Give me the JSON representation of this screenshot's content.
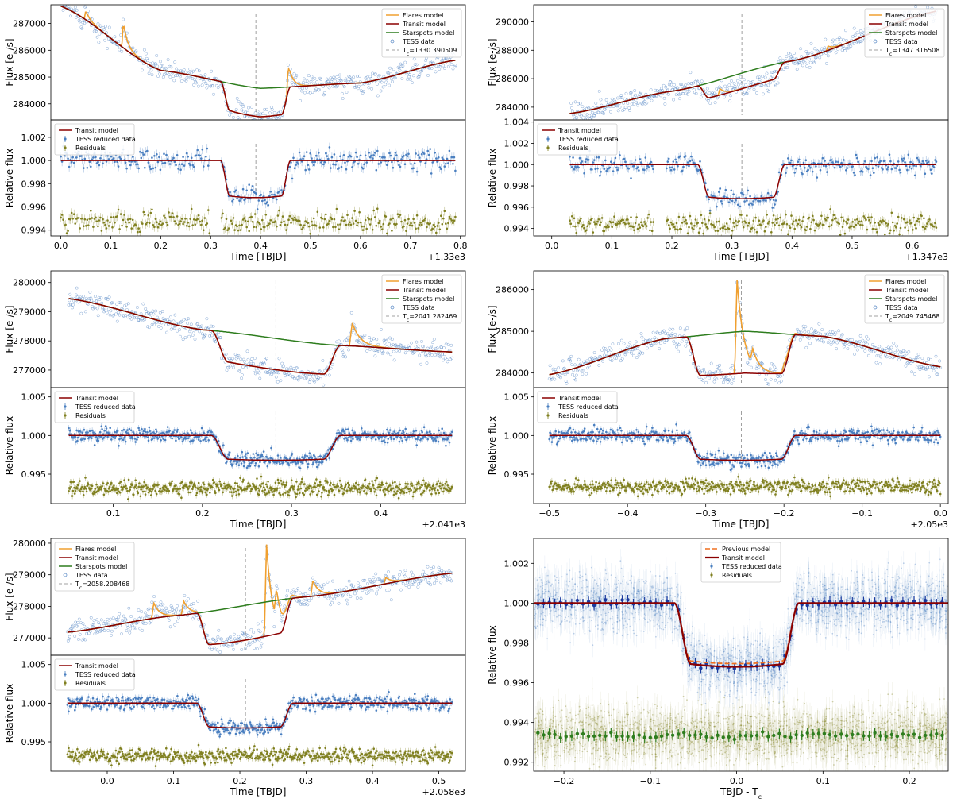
{
  "figure_title": "",
  "colors": {
    "flares": "#f0a030",
    "transit": "#8b0000",
    "starspots": "#2e7d1e",
    "tess": "#4a7fc0",
    "residuals": "#808020",
    "tc_line": "#a0a0a0",
    "previous": "#f07020",
    "transit_final": "#1a237e",
    "binned_blue": "#1a3a9e",
    "binned_green": "#2e7d1e"
  },
  "chart_data": [
    {
      "id": "p1",
      "type": "line",
      "ylabel": "Flux [e-/s]",
      "xlim": [
        -0.02,
        0.81
      ],
      "ylim": [
        283400,
        287700
      ],
      "yticks": [
        284000,
        285000,
        286000,
        287000
      ],
      "legend": {
        "position": "top-right",
        "entries": [
          "Flares model",
          "Transit model",
          "Starspots model",
          "TESS data",
          "T_c=1330.390509"
        ]
      },
      "tc": 0.3905,
      "transit": {
        "t1": 0.32,
        "t4": 0.46,
        "depth": 0.0034
      },
      "starspots": {
        "t": [
          0.0,
          0.2,
          0.4,
          0.6,
          0.79
        ],
        "flux": [
          287650,
          285250,
          284580,
          284780,
          285630
        ]
      },
      "flares": [
        {
          "t": 0.05,
          "amp": 350
        },
        {
          "t": 0.125,
          "amp": 950
        },
        {
          "t": 0.455,
          "amp": 900
        }
      ]
    },
    {
      "id": "p2",
      "type": "line",
      "xlabel": "Time [TBJD]",
      "ylabel": "Relative flux",
      "offset_label": "+1.33e3",
      "xlim": [
        -0.02,
        0.81
      ],
      "ylim": [
        0.9935,
        1.0035
      ],
      "xticks": [
        0.0,
        0.1,
        0.2,
        0.3,
        0.4,
        0.5,
        0.6,
        0.7,
        0.8
      ],
      "xtick_labels": [
        "0.0",
        "0.1",
        "0.2",
        "0.3",
        "0.4",
        "0.5",
        "0.6",
        "0.7",
        "0.8"
      ],
      "yticks": [
        0.994,
        0.996,
        0.998,
        1.0,
        1.002
      ],
      "ytick_labels": [
        "0.994",
        "0.996",
        "0.998",
        "1.000",
        "1.002"
      ],
      "legend": {
        "position": "top-left",
        "entries": [
          "Transit model",
          "TESS reduced data",
          "Residuals"
        ]
      },
      "tc": 0.3905,
      "range": [
        0.0,
        0.79
      ],
      "transit": {
        "t1": 0.32,
        "t4": 0.46,
        "depth": 0.0032
      },
      "residual_level": 0.9947
    },
    {
      "id": "p3",
      "type": "line",
      "ylabel": "Flux [e-/s]",
      "xlim": [
        -0.03,
        0.66
      ],
      "ylim": [
        283100,
        291200
      ],
      "yticks": [
        284000,
        286000,
        288000,
        290000
      ],
      "legend": {
        "position": "top-right",
        "entries": [
          "Flares model",
          "Transit model",
          "Starspots model",
          "TESS data",
          "T_c=1347.316508"
        ]
      },
      "tc": 0.3165,
      "transit": {
        "t1": 0.243,
        "t4": 0.388,
        "depth": 0.0035
      },
      "starspots": {
        "t": [
          0.03,
          0.2,
          0.4,
          0.64
        ],
        "flux": [
          283550,
          285120,
          287250,
          290750
        ]
      },
      "flares": [
        {
          "t": 0.28,
          "amp": 450
        },
        {
          "t": 0.46,
          "amp": 300
        }
      ]
    },
    {
      "id": "p4",
      "type": "line",
      "xlabel": "Time [TBJD]",
      "ylabel": "Relative flux",
      "offset_label": "+1.347e3",
      "xlim": [
        -0.03,
        0.66
      ],
      "ylim": [
        0.9933,
        1.0042
      ],
      "xticks": [
        0.0,
        0.1,
        0.2,
        0.3,
        0.4,
        0.5,
        0.6
      ],
      "xtick_labels": [
        "0.0",
        "0.1",
        "0.2",
        "0.3",
        "0.4",
        "0.5",
        "0.6"
      ],
      "yticks": [
        0.994,
        0.996,
        0.998,
        1.0,
        1.002,
        1.004
      ],
      "ytick_labels": [
        "0.994",
        "0.996",
        "0.998",
        "1.000",
        "1.002",
        "1.004"
      ],
      "legend": {
        "position": "top-left",
        "entries": [
          "Transit model",
          "TESS reduced data",
          "Residuals"
        ]
      },
      "tc": 0.3165,
      "range": [
        0.03,
        0.64
      ],
      "transit": {
        "t1": 0.243,
        "t4": 0.388,
        "depth": 0.0032
      },
      "residual_level": 0.9944
    },
    {
      "id": "p5",
      "type": "line",
      "ylabel": "Flux [e-/s]",
      "xlim": [
        0.03,
        0.495
      ],
      "ylim": [
        276400,
        280400
      ],
      "yticks": [
        277000,
        278000,
        279000,
        280000
      ],
      "legend": {
        "position": "top-right",
        "entries": [
          "Flares model",
          "Transit model",
          "Starspots model",
          "TESS data",
          "T_c=2041.282469"
        ]
      },
      "tc": 0.2825,
      "transit": {
        "t1": 0.21,
        "t4": 0.355,
        "depth": 0.0035
      },
      "starspots": {
        "t": [
          0.05,
          0.2,
          0.35,
          0.48
        ],
        "flux": [
          279450,
          278380,
          277850,
          277620
        ]
      },
      "flares": [
        {
          "t": 0.368,
          "amp": 800
        }
      ]
    },
    {
      "id": "p6",
      "type": "line",
      "xlabel": "Time [TBJD]",
      "ylabel": "Relative flux",
      "offset_label": "+2.041e3",
      "xlim": [
        0.03,
        0.495
      ],
      "ylim": [
        0.9912,
        1.0062
      ],
      "xticks": [
        0.1,
        0.2,
        0.3,
        0.4
      ],
      "xtick_labels": [
        "0.1",
        "0.2",
        "0.3",
        "0.4"
      ],
      "yticks": [
        0.995,
        1.0,
        1.005
      ],
      "ytick_labels": [
        "0.995",
        "1.000",
        "1.005"
      ],
      "legend": {
        "position": "top-left",
        "entries": [
          "Transit model",
          "TESS reduced data",
          "Residuals"
        ]
      },
      "tc": 0.2825,
      "range": [
        0.05,
        0.48
      ],
      "transit": {
        "t1": 0.21,
        "t4": 0.355,
        "depth": 0.0032
      },
      "residual_level": 0.9932
    },
    {
      "id": "p7",
      "type": "line",
      "ylabel": "Flux [e-/s]",
      "xlim": [
        -0.52,
        0.01
      ],
      "ylim": [
        283650,
        286450
      ],
      "yticks": [
        284000,
        285000,
        286000
      ],
      "legend": {
        "position": "top-right",
        "entries": [
          "Flares model",
          "Transit model",
          "Starspots model",
          "TESS data",
          "T_c=2049.745468"
        ]
      },
      "tc": -0.2545,
      "transit": {
        "t1": -0.325,
        "t4": -0.185,
        "depth": 0.0032
      },
      "starspots": {
        "t": [
          -0.5,
          -0.35,
          -0.25,
          -0.15,
          0.0
        ],
        "flux": [
          283960,
          284830,
          285000,
          284880,
          284150
        ]
      },
      "flares": [
        {
          "t": -0.26,
          "amp": 2250
        },
        {
          "t": -0.24,
          "amp": 350
        },
        {
          "t": -0.2,
          "amp": 150
        }
      ]
    },
    {
      "id": "p8",
      "type": "line",
      "xlabel": "Time [TBJD]",
      "ylabel": "Relative flux",
      "offset_label": "+2.05e3",
      "xlim": [
        -0.52,
        0.01
      ],
      "ylim": [
        0.9912,
        1.0062
      ],
      "xticks": [
        -0.5,
        -0.4,
        -0.3,
        -0.2,
        -0.1,
        0.0
      ],
      "xtick_labels": [
        "−0.5",
        "−0.4",
        "−0.3",
        "−0.2",
        "−0.1",
        "0.0"
      ],
      "yticks": [
        0.995,
        1.0,
        1.005
      ],
      "ytick_labels": [
        "0.995",
        "1.000",
        "1.005"
      ],
      "legend": {
        "position": "top-left",
        "entries": [
          "Transit model",
          "TESS reduced data",
          "Residuals"
        ]
      },
      "tc": -0.2545,
      "range": [
        -0.5,
        0.0
      ],
      "transit": {
        "t1": -0.325,
        "t4": -0.185,
        "depth": 0.0032
      },
      "residual_level": 0.9934
    },
    {
      "id": "p9",
      "type": "line",
      "ylabel": "Flux [e-/s]",
      "xlim": [
        -0.085,
        0.54
      ],
      "ylim": [
        276450,
        280150
      ],
      "yticks": [
        277000,
        278000,
        279000,
        280000
      ],
      "legend": {
        "position": "top-left",
        "entries": [
          "Flares model",
          "Transit model",
          "Starspots model",
          "TESS data",
          "T_c=2058.208468"
        ]
      },
      "tc": 0.2085,
      "transit": {
        "t1": 0.135,
        "t4": 0.28,
        "depth": 0.0036
      },
      "starspots": {
        "t": [
          -0.06,
          0.1,
          0.3,
          0.52
        ],
        "flux": [
          277180,
          277700,
          278300,
          279050
        ]
      },
      "flares": [
        {
          "t": 0.07,
          "amp": 500
        },
        {
          "t": 0.115,
          "amp": 450
        },
        {
          "t": 0.24,
          "amp": 2950
        },
        {
          "t": 0.255,
          "amp": 900
        },
        {
          "t": 0.31,
          "amp": 500
        },
        {
          "t": 0.42,
          "amp": 200
        }
      ]
    },
    {
      "id": "p10",
      "type": "line",
      "xlabel": "Time [TBJD]",
      "ylabel": "Relative flux",
      "offset_label": "+2.058e3",
      "xlim": [
        -0.085,
        0.54
      ],
      "ylim": [
        0.9912,
        1.0062
      ],
      "xticks": [
        0.0,
        0.1,
        0.2,
        0.3,
        0.4,
        0.5
      ],
      "xtick_labels": [
        "0.0",
        "0.1",
        "0.2",
        "0.3",
        "0.4",
        "0.5"
      ],
      "yticks": [
        0.995,
        1.0,
        1.005
      ],
      "ytick_labels": [
        "0.995",
        "1.000",
        "1.005"
      ],
      "legend": {
        "position": "top-left",
        "entries": [
          "Transit model",
          "TESS reduced data",
          "Residuals"
        ]
      },
      "tc": 0.2085,
      "range": [
        -0.06,
        0.52
      ],
      "transit": {
        "t1": 0.135,
        "t4": 0.28,
        "depth": 0.0032
      },
      "residual_level": 0.9932
    },
    {
      "id": "p11",
      "type": "scatter",
      "xlabel": "TBJD - T_c",
      "ylabel": "Relative flux",
      "xlim": [
        -0.235,
        0.245
      ],
      "ylim": [
        0.99155,
        1.00325
      ],
      "xticks": [
        -0.2,
        -0.1,
        0.0,
        0.1,
        0.2
      ],
      "xtick_labels": [
        "−0.2",
        "−0.1",
        "0.0",
        "0.1",
        "0.2"
      ],
      "yticks": [
        0.992,
        0.994,
        0.996,
        0.998,
        1.0,
        1.002
      ],
      "ytick_labels": [
        "0.992",
        "0.994",
        "0.996",
        "0.998",
        "1.000",
        "1.002"
      ],
      "legend": {
        "position": "top-center",
        "entries": [
          "Previous model",
          "Transit model",
          "TESS reduced data",
          "Residuals"
        ]
      },
      "transit": {
        "t1": -0.072,
        "t4": 0.072,
        "depth": 0.0032
      },
      "residual_level": 0.99335
    }
  ]
}
